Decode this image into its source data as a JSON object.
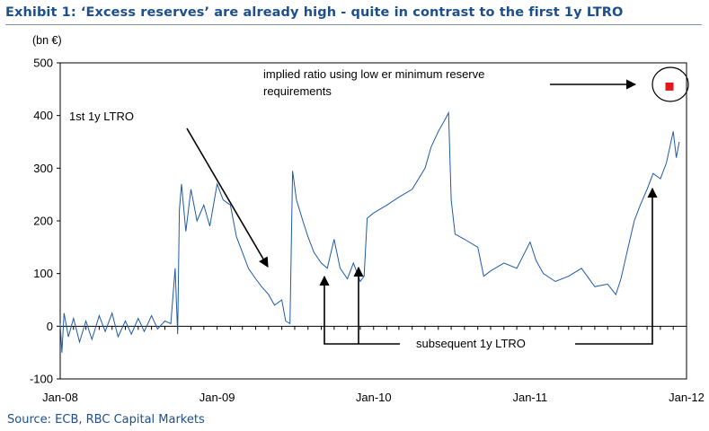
{
  "header": {
    "title": "Exhibit 1: ‘Excess reserves’ are already high - quite in contrast to the first 1y LTRO",
    "unit": "(bn €)"
  },
  "footer": {
    "source": "Source: ECB, RBC Capital Markets"
  },
  "colors": {
    "line": "#1f5aa6",
    "title": "#1c4f8c",
    "marker": "#e8141c",
    "axis": "#000000"
  },
  "annotations": {
    "first_ltro": "1st 1y LTRO",
    "subsequent_ltro": "subsequent 1y LTRO",
    "implied_ratio_line1": "implied ratio using low er minimum reserve",
    "implied_ratio_line2": "requirements"
  },
  "chart_data": {
    "type": "line",
    "title": "Exhibit 1: ‘Excess reserves’ are already high - quite in contrast to the first 1y LTRO",
    "ylabel": "(bn €)",
    "xlabel": "",
    "xlim": [
      "2008-01-01",
      "2012-01-01"
    ],
    "ylim": [
      -100,
      500
    ],
    "yticks": [
      -100,
      0,
      100,
      200,
      300,
      400,
      500
    ],
    "xticks": [
      "Jan-08",
      "Jan-09",
      "Jan-10",
      "Jan-11",
      "Jan-12"
    ],
    "grid": false,
    "series": [
      {
        "points": [
          [
            "2008-01-01",
            5
          ],
          [
            "2008-01-05",
            -50
          ],
          [
            "2008-01-10",
            25
          ],
          [
            "2008-01-20",
            -20
          ],
          [
            "2008-02-01",
            15
          ],
          [
            "2008-02-15",
            -30
          ],
          [
            "2008-03-01",
            10
          ],
          [
            "2008-03-15",
            -25
          ],
          [
            "2008-04-01",
            20
          ],
          [
            "2008-04-15",
            -10
          ],
          [
            "2008-05-01",
            25
          ],
          [
            "2008-05-15",
            -20
          ],
          [
            "2008-06-01",
            10
          ],
          [
            "2008-06-15",
            -15
          ],
          [
            "2008-07-01",
            15
          ],
          [
            "2008-07-15",
            -10
          ],
          [
            "2008-08-01",
            20
          ],
          [
            "2008-08-15",
            -5
          ],
          [
            "2008-09-01",
            10
          ],
          [
            "2008-09-15",
            5
          ],
          [
            "2008-09-25",
            110
          ],
          [
            "2008-10-01",
            -15
          ],
          [
            "2008-10-05",
            220
          ],
          [
            "2008-10-10",
            270
          ],
          [
            "2008-10-20",
            180
          ],
          [
            "2008-11-01",
            260
          ],
          [
            "2008-11-15",
            200
          ],
          [
            "2008-12-01",
            230
          ],
          [
            "2008-12-15",
            190
          ],
          [
            "2009-01-01",
            270
          ],
          [
            "2009-01-15",
            240
          ],
          [
            "2009-02-01",
            230
          ],
          [
            "2009-02-15",
            170
          ],
          [
            "2009-03-01",
            140
          ],
          [
            "2009-03-15",
            110
          ],
          [
            "2009-04-01",
            90
          ],
          [
            "2009-04-15",
            75
          ],
          [
            "2009-05-01",
            60
          ],
          [
            "2009-05-15",
            40
          ],
          [
            "2009-06-01",
            50
          ],
          [
            "2009-06-10",
            10
          ],
          [
            "2009-06-20",
            5
          ],
          [
            "2009-06-26",
            295
          ],
          [
            "2009-07-05",
            240
          ],
          [
            "2009-07-20",
            200
          ],
          [
            "2009-08-01",
            170
          ],
          [
            "2009-08-15",
            140
          ],
          [
            "2009-09-01",
            120
          ],
          [
            "2009-09-15",
            110
          ],
          [
            "2009-10-01",
            165
          ],
          [
            "2009-10-15",
            110
          ],
          [
            "2009-11-01",
            90
          ],
          [
            "2009-11-15",
            120
          ],
          [
            "2009-12-01",
            85
          ],
          [
            "2009-12-10",
            95
          ],
          [
            "2009-12-17",
            205
          ],
          [
            "2010-01-01",
            215
          ],
          [
            "2010-02-01",
            230
          ],
          [
            "2010-03-01",
            245
          ],
          [
            "2010-04-01",
            260
          ],
          [
            "2010-05-01",
            300
          ],
          [
            "2010-05-15",
            340
          ],
          [
            "2010-06-01",
            370
          ],
          [
            "2010-06-15",
            390
          ],
          [
            "2010-06-25",
            405
          ],
          [
            "2010-07-01",
            240
          ],
          [
            "2010-07-10",
            175
          ],
          [
            "2010-08-01",
            165
          ],
          [
            "2010-09-01",
            150
          ],
          [
            "2010-09-15",
            95
          ],
          [
            "2010-10-01",
            105
          ],
          [
            "2010-11-01",
            120
          ],
          [
            "2010-12-01",
            110
          ],
          [
            "2011-01-01",
            160
          ],
          [
            "2011-01-15",
            125
          ],
          [
            "2011-02-01",
            100
          ],
          [
            "2011-03-01",
            85
          ],
          [
            "2011-04-01",
            95
          ],
          [
            "2011-05-01",
            110
          ],
          [
            "2011-06-01",
            75
          ],
          [
            "2011-07-01",
            80
          ],
          [
            "2011-07-20",
            60
          ],
          [
            "2011-08-01",
            90
          ],
          [
            "2011-08-15",
            140
          ],
          [
            "2011-09-01",
            200
          ],
          [
            "2011-09-15",
            230
          ],
          [
            "2011-10-01",
            260
          ],
          [
            "2011-10-15",
            290
          ],
          [
            "2011-11-01",
            280
          ],
          [
            "2011-11-15",
            310
          ],
          [
            "2011-12-01",
            370
          ],
          [
            "2011-12-08",
            320
          ],
          [
            "2011-12-15",
            350
          ]
        ]
      }
    ],
    "marker_point": [
      "2012-01-01",
      455
    ]
  }
}
